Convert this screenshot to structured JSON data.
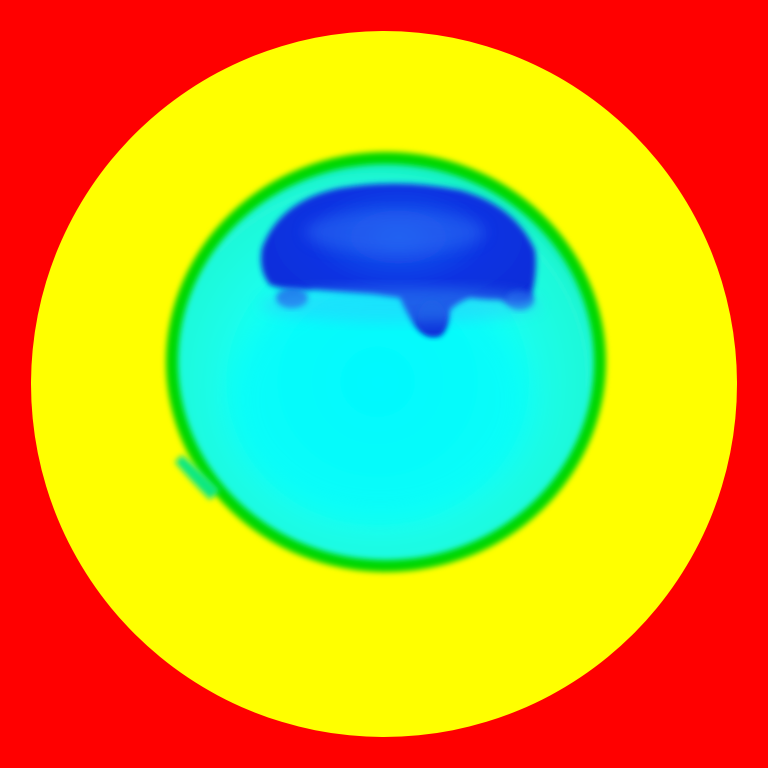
{
  "image": {
    "kind": "false-color heatmap render",
    "palette": {
      "background": "#ff0000",
      "outer_disk": "#ffff00",
      "ring": "#00e000",
      "core": "#00ffff",
      "cap": "#0a2ee6"
    }
  }
}
